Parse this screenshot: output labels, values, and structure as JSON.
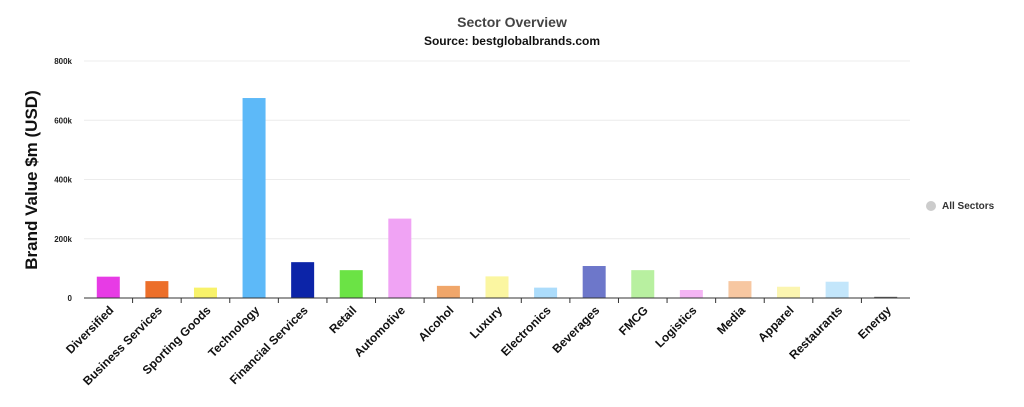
{
  "chart_data": {
    "type": "bar",
    "title": "Sector Overview",
    "subtitle": "Source: bestglobalbrands.com",
    "ylabel": "Brand Value $m (USD)",
    "ylim": [
      0,
      800000
    ],
    "yticks": [
      0,
      200000,
      400000,
      600000,
      800000
    ],
    "ytick_labels": [
      "0",
      "200k",
      "400k",
      "600k",
      "800k"
    ],
    "grid": true,
    "legend": {
      "placement": "right",
      "entries": [
        {
          "name": "All Sectors",
          "color": "#cccccc"
        }
      ]
    },
    "categories": [
      "Diversified",
      "Business Services",
      "Sporting Goods",
      "Technology",
      "Financial Services",
      "Retail",
      "Automotive",
      "Alcohol",
      "Luxury",
      "Electronics",
      "Beverages",
      "FMCG",
      "Logistics",
      "Media",
      "Apparel",
      "Restaurants",
      "Energy"
    ],
    "values": [
      72000,
      57000,
      35000,
      675000,
      121000,
      94000,
      268000,
      41000,
      73000,
      35000,
      108000,
      94000,
      27000,
      57000,
      38000,
      55000,
      4000
    ],
    "colors": [
      "#e73be5",
      "#ec6f2a",
      "#f8f26a",
      "#5db9f8",
      "#0c24a8",
      "#6be345",
      "#f0a3f4",
      "#f0a66a",
      "#fbf6a1",
      "#acdcfb",
      "#6d77ca",
      "#b8f0a0",
      "#f4b5f4",
      "#f7c7a1",
      "#fbf5b0",
      "#c3e6fb",
      "#666666"
    ]
  }
}
